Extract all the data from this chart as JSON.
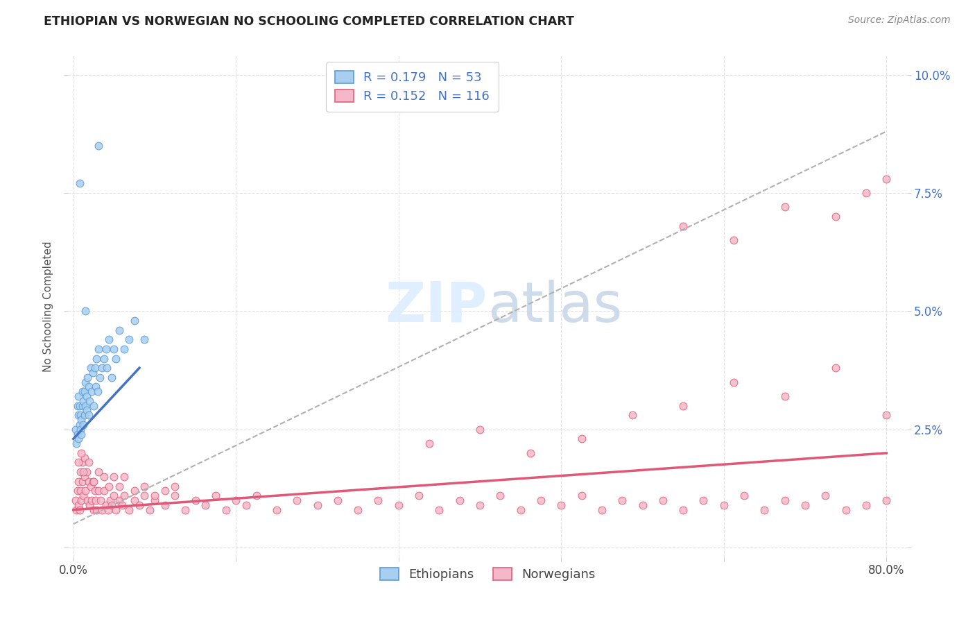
{
  "title": "ETHIOPIAN VS NORWEGIAN NO SCHOOLING COMPLETED CORRELATION CHART",
  "source": "Source: ZipAtlas.com",
  "ylabel": "No Schooling Completed",
  "r_ethiopian": 0.179,
  "n_ethiopian": 53,
  "r_norwegian": 0.152,
  "n_norwegian": 116,
  "xlim": [
    -0.005,
    0.82
  ],
  "ylim": [
    -0.002,
    0.104
  ],
  "color_ethiopian_fill": "#a8cff0",
  "color_ethiopian_edge": "#5b9bd5",
  "color_norwegian_fill": "#f4b8c8",
  "color_norwegian_edge": "#e06080",
  "color_trend_eth": "#4472c4",
  "color_trend_nor": "#e05878",
  "color_trend_dash": "#b0b0b0",
  "background_color": "#ffffff",
  "eth_x": [
    0.002,
    0.003,
    0.004,
    0.004,
    0.005,
    0.005,
    0.005,
    0.006,
    0.006,
    0.007,
    0.007,
    0.008,
    0.008,
    0.009,
    0.009,
    0.01,
    0.01,
    0.011,
    0.011,
    0.012,
    0.012,
    0.013,
    0.013,
    0.014,
    0.015,
    0.015,
    0.016,
    0.017,
    0.018,
    0.019,
    0.02,
    0.021,
    0.022,
    0.023,
    0.024,
    0.025,
    0.026,
    0.028,
    0.03,
    0.032,
    0.033,
    0.035,
    0.038,
    0.04,
    0.042,
    0.045,
    0.05,
    0.055,
    0.06,
    0.07,
    0.012,
    0.006,
    0.025
  ],
  "eth_y": [
    0.025,
    0.022,
    0.024,
    0.03,
    0.023,
    0.028,
    0.032,
    0.026,
    0.03,
    0.025,
    0.028,
    0.024,
    0.027,
    0.03,
    0.033,
    0.026,
    0.031,
    0.028,
    0.033,
    0.03,
    0.035,
    0.029,
    0.032,
    0.036,
    0.028,
    0.034,
    0.031,
    0.038,
    0.033,
    0.037,
    0.03,
    0.038,
    0.034,
    0.04,
    0.033,
    0.042,
    0.036,
    0.038,
    0.04,
    0.042,
    0.038,
    0.044,
    0.036,
    0.042,
    0.04,
    0.046,
    0.042,
    0.044,
    0.048,
    0.044,
    0.05,
    0.077,
    0.085
  ],
  "nor_x": [
    0.002,
    0.003,
    0.004,
    0.005,
    0.005,
    0.006,
    0.007,
    0.007,
    0.008,
    0.009,
    0.009,
    0.01,
    0.011,
    0.011,
    0.012,
    0.013,
    0.014,
    0.015,
    0.016,
    0.017,
    0.018,
    0.019,
    0.02,
    0.021,
    0.022,
    0.023,
    0.025,
    0.027,
    0.028,
    0.03,
    0.032,
    0.034,
    0.036,
    0.038,
    0.04,
    0.042,
    0.045,
    0.048,
    0.05,
    0.055,
    0.06,
    0.065,
    0.07,
    0.075,
    0.08,
    0.09,
    0.1,
    0.11,
    0.12,
    0.13,
    0.14,
    0.15,
    0.16,
    0.17,
    0.18,
    0.2,
    0.22,
    0.24,
    0.26,
    0.28,
    0.3,
    0.32,
    0.34,
    0.36,
    0.38,
    0.4,
    0.42,
    0.44,
    0.46,
    0.48,
    0.5,
    0.52,
    0.54,
    0.56,
    0.58,
    0.6,
    0.62,
    0.64,
    0.66,
    0.68,
    0.7,
    0.72,
    0.74,
    0.76,
    0.78,
    0.8,
    0.005,
    0.008,
    0.01,
    0.015,
    0.02,
    0.025,
    0.03,
    0.035,
    0.04,
    0.045,
    0.05,
    0.06,
    0.07,
    0.08,
    0.09,
    0.1,
    0.35,
    0.4,
    0.45,
    0.5,
    0.55,
    0.6,
    0.65,
    0.7,
    0.75,
    0.8,
    0.6,
    0.65,
    0.7,
    0.75,
    0.78,
    0.8
  ],
  "nor_y": [
    0.01,
    0.008,
    0.012,
    0.009,
    0.014,
    0.008,
    0.012,
    0.016,
    0.01,
    0.014,
    0.018,
    0.011,
    0.015,
    0.019,
    0.012,
    0.016,
    0.01,
    0.014,
    0.009,
    0.013,
    0.01,
    0.014,
    0.008,
    0.012,
    0.01,
    0.008,
    0.012,
    0.01,
    0.008,
    0.012,
    0.009,
    0.008,
    0.01,
    0.009,
    0.011,
    0.008,
    0.01,
    0.009,
    0.011,
    0.008,
    0.01,
    0.009,
    0.011,
    0.008,
    0.01,
    0.009,
    0.011,
    0.008,
    0.01,
    0.009,
    0.011,
    0.008,
    0.01,
    0.009,
    0.011,
    0.008,
    0.01,
    0.009,
    0.01,
    0.008,
    0.01,
    0.009,
    0.011,
    0.008,
    0.01,
    0.009,
    0.011,
    0.008,
    0.01,
    0.009,
    0.011,
    0.008,
    0.01,
    0.009,
    0.01,
    0.008,
    0.01,
    0.009,
    0.011,
    0.008,
    0.01,
    0.009,
    0.011,
    0.008,
    0.009,
    0.01,
    0.018,
    0.02,
    0.016,
    0.018,
    0.014,
    0.016,
    0.015,
    0.013,
    0.015,
    0.013,
    0.015,
    0.012,
    0.013,
    0.011,
    0.012,
    0.013,
    0.022,
    0.025,
    0.02,
    0.023,
    0.028,
    0.03,
    0.035,
    0.032,
    0.038,
    0.028,
    0.068,
    0.065,
    0.072,
    0.07,
    0.075,
    0.078
  ],
  "eth_trend_x": [
    0.0,
    0.065
  ],
  "eth_trend_y": [
    0.023,
    0.038
  ],
  "nor_trend_x": [
    0.0,
    0.8
  ],
  "nor_trend_y": [
    0.008,
    0.02
  ],
  "dash_trend_x": [
    0.0,
    0.8
  ],
  "dash_trend_y": [
    0.005,
    0.088
  ]
}
